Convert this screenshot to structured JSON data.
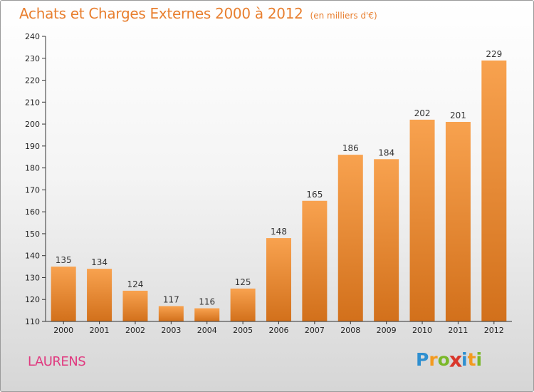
{
  "header": {
    "title": "Achats et Charges Externes 2000 à 2012",
    "unit": "(en milliers d'€)"
  },
  "location": "LAURENS",
  "logo": {
    "letters": [
      "P",
      "r",
      "o",
      "x",
      "i",
      "t",
      "i"
    ],
    "colors": [
      "#2e8fd0",
      "#f39a1f",
      "#7ab829",
      "#d9372b",
      "#2e8fd0",
      "#f39a1f",
      "#7ab829"
    ]
  },
  "colors": {
    "title": "#e87f2f",
    "location": "#e0397f",
    "bar_light": "#f8a24f",
    "bar_dark": "#d2701b",
    "axis": "#333333"
  },
  "chart_data": {
    "type": "bar",
    "title": "Achats et Charges Externes 2000 à 2012",
    "subtitle": "(en milliers d'€)",
    "categories": [
      "2000",
      "2001",
      "2002",
      "2003",
      "2004",
      "2005",
      "2006",
      "2007",
      "2008",
      "2009",
      "2010",
      "2011",
      "2012"
    ],
    "values": [
      135,
      134,
      124,
      117,
      116,
      125,
      148,
      165,
      186,
      184,
      202,
      201,
      229
    ],
    "ylim": [
      110,
      240
    ],
    "yticks": [
      110,
      120,
      130,
      140,
      150,
      160,
      170,
      180,
      190,
      200,
      210,
      220,
      230,
      240
    ],
    "grid": false,
    "legend": "none"
  }
}
